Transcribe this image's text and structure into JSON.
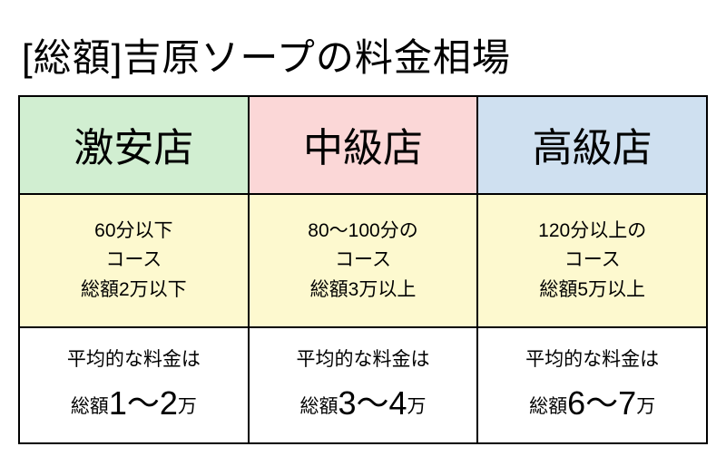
{
  "title": "[総額]吉原ソープの料金相場",
  "colors": {
    "head_bg": [
      "#d1eed1",
      "#fbd7d7",
      "#cfe0f0"
    ],
    "mid_bg": "#fdf9cf",
    "foot_bg": "#ffffff",
    "border": "#000000",
    "text": "#000000"
  },
  "columns": [
    {
      "header": "激安店",
      "course_lines": [
        "60分以下",
        "コース",
        "総額2万以下"
      ],
      "avg_label": "平均的な料金は",
      "avg_prefix": "総額",
      "avg_range": "1〜2",
      "avg_suffix": "万"
    },
    {
      "header": "中級店",
      "course_lines": [
        "80〜100分の",
        "コース",
        "総額3万以上"
      ],
      "avg_label": "平均的な料金は",
      "avg_prefix": "総額",
      "avg_range": "3〜4",
      "avg_suffix": "万"
    },
    {
      "header": "高級店",
      "course_lines": [
        "120分以上の",
        "コース",
        "総額5万以上"
      ],
      "avg_label": "平均的な料金は",
      "avg_prefix": "総額",
      "avg_range": "6〜7",
      "avg_suffix": "万"
    }
  ]
}
